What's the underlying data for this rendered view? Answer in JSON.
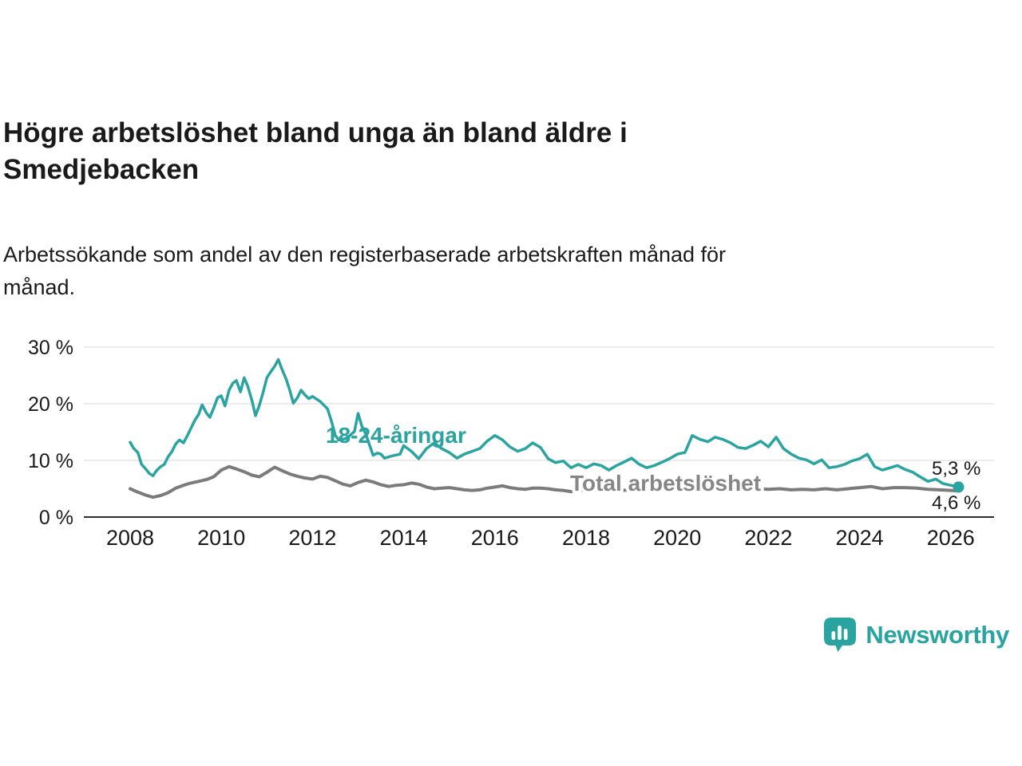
{
  "header": {
    "title": "Högre arbetslöshet bland unga än bland äldre i Smedjebacken",
    "title_line1": "Högre arbetslöshet bland unga än bland äldre i",
    "title_line2": "Smedjebacken",
    "subtitle": "Arbetssökande som andel av den registerbaserade arbetskraften månad för månad.",
    "subtitle_line1": "Arbetssökande som andel av den registerbaserade arbetskraften månad för",
    "subtitle_line2": "månad."
  },
  "branding": {
    "name": "Newsworthy",
    "icon": "bar-chart-speech-bubble-icon",
    "color": "#2aa4a0"
  },
  "colors": {
    "accent_teal": "#2aa4a0",
    "series_gray": "#7b7b7b",
    "grid": "#d9d9d9",
    "text": "#1a1a1a"
  },
  "chart_data": {
    "type": "line",
    "title": "Högre arbetslöshet bland unga än bland äldre i Smedjebacken",
    "subtitle": "Arbetssökande som andel av den registerbaserade arbetskraften månad för månad.",
    "unit": "%",
    "xlabel": "",
    "ylabel": "",
    "grid": "horizontal",
    "legend_position": "inline-labels",
    "x_axis": {
      "min": 2007.2,
      "max": 2027,
      "ticks": [
        {
          "value": 2008,
          "label": "2008"
        },
        {
          "value": 2010,
          "label": "2010"
        },
        {
          "value": 2012,
          "label": "2012"
        },
        {
          "value": 2014,
          "label": "2014"
        },
        {
          "value": 2016,
          "label": "2016"
        },
        {
          "value": 2018,
          "label": "2018"
        },
        {
          "value": 2020,
          "label": "2020"
        },
        {
          "value": 2022,
          "label": "2022"
        },
        {
          "value": 2024,
          "label": "2024"
        },
        {
          "value": 2026,
          "label": "2026"
        }
      ]
    },
    "y_axis": {
      "min": 0,
      "max": 30,
      "ticks": [
        {
          "value": 0,
          "label": "0 %"
        },
        {
          "value": 10,
          "label": "10 %"
        },
        {
          "value": 20,
          "label": "20 %"
        },
        {
          "value": 30,
          "label": "30 %"
        }
      ]
    },
    "series": [
      {
        "name": "18-24-åringar",
        "label": "18-24-åringar",
        "color": "#2aa4a0",
        "end_label": "5,3 %",
        "end_value": 5.3,
        "points": [
          [
            2008.0,
            13.2
          ],
          [
            2008.08,
            12.1
          ],
          [
            2008.17,
            11.4
          ],
          [
            2008.25,
            9.3
          ],
          [
            2008.33,
            8.6
          ],
          [
            2008.42,
            7.7
          ],
          [
            2008.5,
            7.3
          ],
          [
            2008.58,
            8.2
          ],
          [
            2008.67,
            8.9
          ],
          [
            2008.75,
            9.3
          ],
          [
            2008.83,
            10.6
          ],
          [
            2008.92,
            11.6
          ],
          [
            2009.0,
            12.9
          ],
          [
            2009.08,
            13.6
          ],
          [
            2009.17,
            13.1
          ],
          [
            2009.25,
            14.3
          ],
          [
            2009.33,
            15.6
          ],
          [
            2009.42,
            17.1
          ],
          [
            2009.5,
            18.1
          ],
          [
            2009.58,
            19.8
          ],
          [
            2009.67,
            18.4
          ],
          [
            2009.75,
            17.6
          ],
          [
            2009.83,
            19.2
          ],
          [
            2009.92,
            21.1
          ],
          [
            2010.0,
            21.4
          ],
          [
            2010.08,
            19.6
          ],
          [
            2010.17,
            22.4
          ],
          [
            2010.25,
            23.6
          ],
          [
            2010.33,
            24.1
          ],
          [
            2010.42,
            22.1
          ],
          [
            2010.5,
            24.6
          ],
          [
            2010.58,
            23.1
          ],
          [
            2010.67,
            20.6
          ],
          [
            2010.75,
            17.9
          ],
          [
            2010.83,
            19.6
          ],
          [
            2010.92,
            22.1
          ],
          [
            2011.0,
            24.6
          ],
          [
            2011.08,
            25.6
          ],
          [
            2011.17,
            26.6
          ],
          [
            2011.25,
            27.8
          ],
          [
            2011.33,
            26.1
          ],
          [
            2011.42,
            24.4
          ],
          [
            2011.5,
            22.4
          ],
          [
            2011.58,
            20.1
          ],
          [
            2011.67,
            21.1
          ],
          [
            2011.75,
            22.4
          ],
          [
            2011.83,
            21.6
          ],
          [
            2011.92,
            20.9
          ],
          [
            2012.0,
            21.3
          ],
          [
            2012.17,
            20.4
          ],
          [
            2012.33,
            19.1
          ],
          [
            2012.42,
            16.8
          ],
          [
            2012.5,
            14.4
          ],
          [
            2012.58,
            13.6
          ],
          [
            2012.75,
            13.9
          ],
          [
            2012.92,
            15.1
          ],
          [
            2013.0,
            18.3
          ],
          [
            2013.08,
            16.1
          ],
          [
            2013.17,
            14.6
          ],
          [
            2013.33,
            10.9
          ],
          [
            2013.42,
            11.3
          ],
          [
            2013.5,
            11.1
          ],
          [
            2013.58,
            10.4
          ],
          [
            2013.75,
            10.8
          ],
          [
            2013.92,
            11.1
          ],
          [
            2014.0,
            12.6
          ],
          [
            2014.17,
            11.6
          ],
          [
            2014.33,
            10.3
          ],
          [
            2014.5,
            12.1
          ],
          [
            2014.67,
            13.1
          ],
          [
            2014.83,
            12.1
          ],
          [
            2015.0,
            11.4
          ],
          [
            2015.17,
            10.4
          ],
          [
            2015.33,
            11.1
          ],
          [
            2015.5,
            11.6
          ],
          [
            2015.67,
            12.1
          ],
          [
            2015.83,
            13.4
          ],
          [
            2016.0,
            14.4
          ],
          [
            2016.17,
            13.6
          ],
          [
            2016.33,
            12.4
          ],
          [
            2016.5,
            11.6
          ],
          [
            2016.67,
            12.1
          ],
          [
            2016.83,
            13.1
          ],
          [
            2017.0,
            12.3
          ],
          [
            2017.17,
            10.3
          ],
          [
            2017.33,
            9.6
          ],
          [
            2017.5,
            9.9
          ],
          [
            2017.67,
            8.7
          ],
          [
            2017.83,
            9.3
          ],
          [
            2018.0,
            8.7
          ],
          [
            2018.17,
            9.4
          ],
          [
            2018.33,
            9.1
          ],
          [
            2018.5,
            8.3
          ],
          [
            2018.67,
            9.1
          ],
          [
            2018.83,
            9.7
          ],
          [
            2019.0,
            10.4
          ],
          [
            2019.17,
            9.3
          ],
          [
            2019.33,
            8.7
          ],
          [
            2019.5,
            9.1
          ],
          [
            2019.67,
            9.7
          ],
          [
            2019.83,
            10.3
          ],
          [
            2020.0,
            11.1
          ],
          [
            2020.17,
            11.4
          ],
          [
            2020.33,
            14.4
          ],
          [
            2020.5,
            13.7
          ],
          [
            2020.67,
            13.3
          ],
          [
            2020.83,
            14.1
          ],
          [
            2021.0,
            13.7
          ],
          [
            2021.17,
            13.1
          ],
          [
            2021.33,
            12.3
          ],
          [
            2021.5,
            12.1
          ],
          [
            2021.67,
            12.7
          ],
          [
            2021.83,
            13.4
          ],
          [
            2022.0,
            12.4
          ],
          [
            2022.17,
            14.1
          ],
          [
            2022.33,
            12.1
          ],
          [
            2022.5,
            11.1
          ],
          [
            2022.67,
            10.4
          ],
          [
            2022.83,
            10.1
          ],
          [
            2023.0,
            9.4
          ],
          [
            2023.17,
            10.1
          ],
          [
            2023.33,
            8.7
          ],
          [
            2023.5,
            8.9
          ],
          [
            2023.67,
            9.3
          ],
          [
            2023.83,
            9.9
          ],
          [
            2024.0,
            10.3
          ],
          [
            2024.17,
            11.1
          ],
          [
            2024.33,
            8.9
          ],
          [
            2024.5,
            8.3
          ],
          [
            2024.67,
            8.7
          ],
          [
            2024.83,
            9.1
          ],
          [
            2025.0,
            8.4
          ],
          [
            2025.17,
            7.9
          ],
          [
            2025.33,
            7.1
          ],
          [
            2025.5,
            6.3
          ],
          [
            2025.67,
            6.7
          ],
          [
            2025.83,
            5.9
          ],
          [
            2026.0,
            5.6
          ],
          [
            2026.17,
            5.3
          ]
        ]
      },
      {
        "name": "Total arbetslöshet",
        "label": "Total arbetslöshet",
        "color": "#7b7b7b",
        "end_label": "4,6 %",
        "end_value": 4.6,
        "points": [
          [
            2008.0,
            5.0
          ],
          [
            2008.17,
            4.4
          ],
          [
            2008.33,
            3.9
          ],
          [
            2008.5,
            3.5
          ],
          [
            2008.67,
            3.8
          ],
          [
            2008.83,
            4.3
          ],
          [
            2009.0,
            5.1
          ],
          [
            2009.17,
            5.6
          ],
          [
            2009.33,
            6.0
          ],
          [
            2009.5,
            6.3
          ],
          [
            2009.67,
            6.6
          ],
          [
            2009.83,
            7.1
          ],
          [
            2010.0,
            8.3
          ],
          [
            2010.17,
            8.9
          ],
          [
            2010.33,
            8.5
          ],
          [
            2010.5,
            8.0
          ],
          [
            2010.67,
            7.4
          ],
          [
            2010.83,
            7.1
          ],
          [
            2011.0,
            7.9
          ],
          [
            2011.17,
            8.8
          ],
          [
            2011.33,
            8.2
          ],
          [
            2011.5,
            7.6
          ],
          [
            2011.67,
            7.2
          ],
          [
            2011.83,
            6.9
          ],
          [
            2012.0,
            6.7
          ],
          [
            2012.17,
            7.2
          ],
          [
            2012.33,
            7.0
          ],
          [
            2012.5,
            6.4
          ],
          [
            2012.67,
            5.8
          ],
          [
            2012.83,
            5.5
          ],
          [
            2013.0,
            6.1
          ],
          [
            2013.17,
            6.5
          ],
          [
            2013.33,
            6.2
          ],
          [
            2013.5,
            5.7
          ],
          [
            2013.67,
            5.4
          ],
          [
            2013.83,
            5.6
          ],
          [
            2014.0,
            5.7
          ],
          [
            2014.17,
            6.0
          ],
          [
            2014.33,
            5.8
          ],
          [
            2014.5,
            5.3
          ],
          [
            2014.67,
            5.0
          ],
          [
            2014.83,
            5.1
          ],
          [
            2015.0,
            5.2
          ],
          [
            2015.17,
            5.0
          ],
          [
            2015.33,
            4.8
          ],
          [
            2015.5,
            4.7
          ],
          [
            2015.67,
            4.8
          ],
          [
            2015.83,
            5.1
          ],
          [
            2016.0,
            5.3
          ],
          [
            2016.17,
            5.5
          ],
          [
            2016.33,
            5.2
          ],
          [
            2016.5,
            5.0
          ],
          [
            2016.67,
            4.9
          ],
          [
            2016.83,
            5.1
          ],
          [
            2017.0,
            5.1
          ],
          [
            2017.17,
            5.0
          ],
          [
            2017.33,
            4.8
          ],
          [
            2017.5,
            4.7
          ],
          [
            2017.67,
            4.5
          ],
          [
            2017.83,
            4.6
          ],
          [
            2018.0,
            4.8
          ],
          [
            2018.25,
            4.9
          ],
          [
            2018.5,
            4.6
          ],
          [
            2018.75,
            4.7
          ],
          [
            2019.0,
            4.8
          ],
          [
            2019.25,
            4.7
          ],
          [
            2019.5,
            4.6
          ],
          [
            2019.75,
            4.8
          ],
          [
            2020.0,
            5.0
          ],
          [
            2020.25,
            5.4
          ],
          [
            2020.5,
            5.6
          ],
          [
            2020.75,
            5.5
          ],
          [
            2021.0,
            5.4
          ],
          [
            2021.25,
            5.3
          ],
          [
            2021.5,
            5.1
          ],
          [
            2021.75,
            5.0
          ],
          [
            2022.0,
            4.9
          ],
          [
            2022.25,
            5.0
          ],
          [
            2022.5,
            4.8
          ],
          [
            2022.75,
            4.9
          ],
          [
            2023.0,
            4.8
          ],
          [
            2023.25,
            5.0
          ],
          [
            2023.5,
            4.8
          ],
          [
            2023.75,
            5.0
          ],
          [
            2024.0,
            5.2
          ],
          [
            2024.25,
            5.4
          ],
          [
            2024.5,
            5.0
          ],
          [
            2024.75,
            5.2
          ],
          [
            2025.0,
            5.2
          ],
          [
            2025.25,
            5.1
          ],
          [
            2025.5,
            4.9
          ],
          [
            2025.75,
            4.8
          ],
          [
            2026.0,
            4.7
          ],
          [
            2026.17,
            4.6
          ]
        ]
      }
    ]
  }
}
